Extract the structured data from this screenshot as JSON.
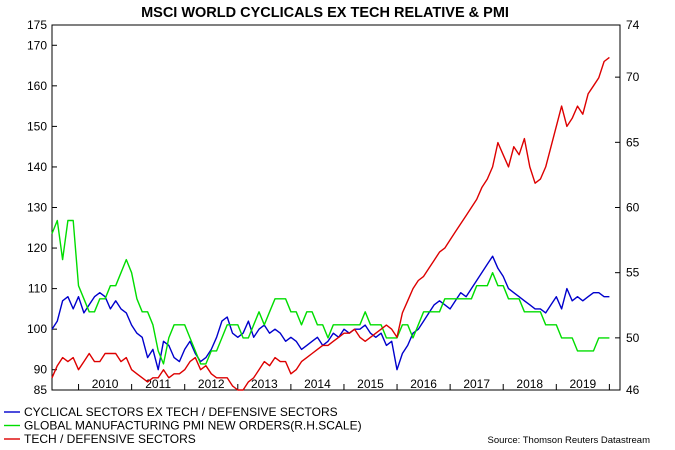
{
  "chart_data": {
    "type": "line",
    "title": "MSCI WORLD CYCLICALS EX TECH RELATIVE & PMI",
    "source": "Source: Thomson Reuters Datastream",
    "x_range": [
      2009.5,
      2020.2
    ],
    "x_tick_labels": [
      "2010",
      "2011",
      "2012",
      "2013",
      "2014",
      "2015",
      "2016",
      "2017",
      "2018",
      "2019"
    ],
    "y_left": {
      "range": [
        85,
        175
      ],
      "ticks": [
        85,
        90,
        100,
        110,
        120,
        130,
        140,
        150,
        160,
        170,
        175
      ]
    },
    "y_right": {
      "range": [
        46,
        74
      ],
      "ticks": [
        46,
        50,
        55,
        60,
        65,
        70,
        74
      ]
    },
    "series": [
      {
        "name": "CYCLICAL SECTORS EX TECH / DEFENSIVE SECTORS",
        "color": "#0000cc",
        "axis": "left",
        "x": [
          2009.5,
          2009.6,
          2009.7,
          2009.8,
          2009.9,
          2010.0,
          2010.1,
          2010.2,
          2010.3,
          2010.4,
          2010.5,
          2010.6,
          2010.7,
          2010.8,
          2010.9,
          2011.0,
          2011.1,
          2011.2,
          2011.3,
          2011.4,
          2011.5,
          2011.6,
          2011.7,
          2011.8,
          2011.9,
          2012.0,
          2012.1,
          2012.2,
          2012.3,
          2012.4,
          2012.5,
          2012.6,
          2012.7,
          2012.8,
          2012.9,
          2013.0,
          2013.1,
          2013.2,
          2013.3,
          2013.4,
          2013.5,
          2013.6,
          2013.7,
          2013.8,
          2013.9,
          2014.0,
          2014.1,
          2014.2,
          2014.3,
          2014.4,
          2014.5,
          2014.6,
          2014.7,
          2014.8,
          2014.9,
          2015.0,
          2015.1,
          2015.2,
          2015.3,
          2015.4,
          2015.5,
          2015.6,
          2015.7,
          2015.8,
          2015.9,
          2016.0,
          2016.1,
          2016.2,
          2016.3,
          2016.4,
          2016.5,
          2016.6,
          2016.7,
          2016.8,
          2016.9,
          2017.0,
          2017.1,
          2017.2,
          2017.3,
          2017.4,
          2017.5,
          2017.6,
          2017.7,
          2017.8,
          2017.9,
          2018.0,
          2018.1,
          2018.2,
          2018.3,
          2018.4,
          2018.5,
          2018.6,
          2018.7,
          2018.8,
          2018.9,
          2019.0,
          2019.1,
          2019.2,
          2019.3,
          2019.4,
          2019.5,
          2019.6,
          2019.7,
          2019.8,
          2019.9,
          2020.0
        ],
        "values": [
          100,
          102,
          107,
          108,
          105,
          108,
          104,
          106,
          108,
          109,
          108,
          105,
          107,
          105,
          104,
          101,
          99,
          98,
          93,
          95,
          90,
          97,
          96,
          93,
          92,
          95,
          97,
          94,
          92,
          93,
          95,
          98,
          102,
          103,
          99,
          98,
          99,
          102,
          98,
          100,
          101,
          99,
          100,
          99,
          97,
          98,
          97,
          95,
          96,
          97,
          98,
          96,
          97,
          99,
          98,
          100,
          99,
          100,
          100,
          101,
          99,
          98,
          99,
          96,
          97,
          90,
          94,
          96,
          99,
          100,
          102,
          104,
          106,
          107,
          106,
          105,
          107,
          109,
          108,
          110,
          112,
          114,
          116,
          118,
          115,
          113,
          110,
          109,
          108,
          107,
          106,
          105,
          105,
          104,
          106,
          108,
          105,
          110,
          107,
          108,
          107,
          108,
          109,
          109,
          108,
          108
        ]
      },
      {
        "name": "GLOBAL MANUFACTURING PMI NEW ORDERS(R.H.SCALE)",
        "color": "#00dd00",
        "axis": "right",
        "x": [
          2009.5,
          2009.6,
          2009.7,
          2009.8,
          2009.9,
          2010.0,
          2010.1,
          2010.2,
          2010.3,
          2010.4,
          2010.5,
          2010.6,
          2010.7,
          2010.8,
          2010.9,
          2011.0,
          2011.1,
          2011.2,
          2011.3,
          2011.4,
          2011.5,
          2011.6,
          2011.7,
          2011.8,
          2011.9,
          2012.0,
          2012.1,
          2012.2,
          2012.3,
          2012.4,
          2012.5,
          2012.6,
          2012.7,
          2012.8,
          2012.9,
          2013.0,
          2013.1,
          2013.2,
          2013.3,
          2013.4,
          2013.5,
          2013.6,
          2013.7,
          2013.8,
          2013.9,
          2014.0,
          2014.1,
          2014.2,
          2014.3,
          2014.4,
          2014.5,
          2014.6,
          2014.7,
          2014.8,
          2014.9,
          2015.0,
          2015.1,
          2015.2,
          2015.3,
          2015.4,
          2015.5,
          2015.6,
          2015.7,
          2015.8,
          2015.9,
          2016.0,
          2016.1,
          2016.2,
          2016.3,
          2016.4,
          2016.5,
          2016.6,
          2016.7,
          2016.8,
          2016.9,
          2017.0,
          2017.1,
          2017.2,
          2017.3,
          2017.4,
          2017.5,
          2017.6,
          2017.7,
          2017.8,
          2017.9,
          2018.0,
          2018.1,
          2018.2,
          2018.3,
          2018.4,
          2018.5,
          2018.6,
          2018.7,
          2018.8,
          2018.9,
          2019.0,
          2019.1,
          2019.2,
          2019.3,
          2019.4,
          2019.5,
          2019.6,
          2019.7,
          2019.8,
          2019.9,
          2020.0
        ],
        "values": [
          58,
          59,
          56,
          59,
          59,
          54,
          53,
          52,
          52,
          53,
          53,
          54,
          54,
          55,
          56,
          55,
          53,
          52,
          52,
          51,
          49,
          48,
          50,
          51,
          51,
          51,
          50,
          49,
          48,
          48,
          49,
          49,
          50,
          51,
          51,
          51,
          50,
          50,
          51,
          52,
          51,
          52,
          53,
          53,
          53,
          52,
          52,
          51,
          52,
          52,
          51,
          51,
          50,
          51,
          51,
          51,
          51,
          51,
          51,
          52,
          51,
          51,
          51,
          50,
          50,
          50,
          51,
          51,
          50,
          51,
          52,
          52,
          52,
          52,
          53,
          53,
          53,
          53,
          53,
          53,
          54,
          54,
          54,
          55,
          54,
          54,
          53,
          53,
          53,
          52,
          52,
          52,
          52,
          51,
          51,
          51,
          50,
          50,
          50,
          49,
          49,
          49,
          49,
          50,
          50,
          50
        ]
      },
      {
        "name": "TECH / DEFENSIVE SECTORS",
        "color": "#dd0000",
        "axis": "left",
        "x": [
          2009.5,
          2009.6,
          2009.7,
          2009.8,
          2009.9,
          2010.0,
          2010.1,
          2010.2,
          2010.3,
          2010.4,
          2010.5,
          2010.6,
          2010.7,
          2010.8,
          2010.9,
          2011.0,
          2011.1,
          2011.2,
          2011.3,
          2011.4,
          2011.5,
          2011.6,
          2011.7,
          2011.8,
          2011.9,
          2012.0,
          2012.1,
          2012.2,
          2012.3,
          2012.4,
          2012.5,
          2012.6,
          2012.7,
          2012.8,
          2012.9,
          2013.0,
          2013.1,
          2013.2,
          2013.3,
          2013.4,
          2013.5,
          2013.6,
          2013.7,
          2013.8,
          2013.9,
          2014.0,
          2014.1,
          2014.2,
          2014.3,
          2014.4,
          2014.5,
          2014.6,
          2014.7,
          2014.8,
          2014.9,
          2015.0,
          2015.1,
          2015.2,
          2015.3,
          2015.4,
          2015.5,
          2015.6,
          2015.7,
          2015.8,
          2015.9,
          2016.0,
          2016.1,
          2016.2,
          2016.3,
          2016.4,
          2016.5,
          2016.6,
          2016.7,
          2016.8,
          2016.9,
          2017.0,
          2017.1,
          2017.2,
          2017.3,
          2017.4,
          2017.5,
          2017.6,
          2017.7,
          2017.8,
          2017.9,
          2018.0,
          2018.1,
          2018.2,
          2018.3,
          2018.4,
          2018.5,
          2018.6,
          2018.7,
          2018.8,
          2018.9,
          2019.0,
          2019.1,
          2019.2,
          2019.3,
          2019.4,
          2019.5,
          2019.6,
          2019.7,
          2019.8,
          2019.9,
          2020.0
        ],
        "values": [
          88,
          91,
          93,
          92,
          93,
          90,
          92,
          94,
          92,
          92,
          94,
          94,
          94,
          92,
          93,
          90,
          89,
          88,
          87,
          88,
          88,
          90,
          88,
          89,
          89,
          90,
          92,
          93,
          90,
          91,
          89,
          88,
          88,
          88,
          86,
          85,
          85,
          87,
          88,
          90,
          92,
          91,
          93,
          92,
          92,
          89,
          90,
          92,
          93,
          94,
          95,
          96,
          96,
          97,
          98,
          99,
          99,
          100,
          98,
          97,
          98,
          99,
          100,
          101,
          100,
          98,
          104,
          107,
          110,
          112,
          113,
          115,
          117,
          119,
          120,
          122,
          124,
          126,
          128,
          130,
          132,
          135,
          137,
          140,
          146,
          143,
          140,
          145,
          143,
          147,
          140,
          136,
          137,
          140,
          145,
          150,
          155,
          150,
          152,
          155,
          153,
          158,
          160,
          162,
          166,
          167
        ]
      }
    ]
  }
}
